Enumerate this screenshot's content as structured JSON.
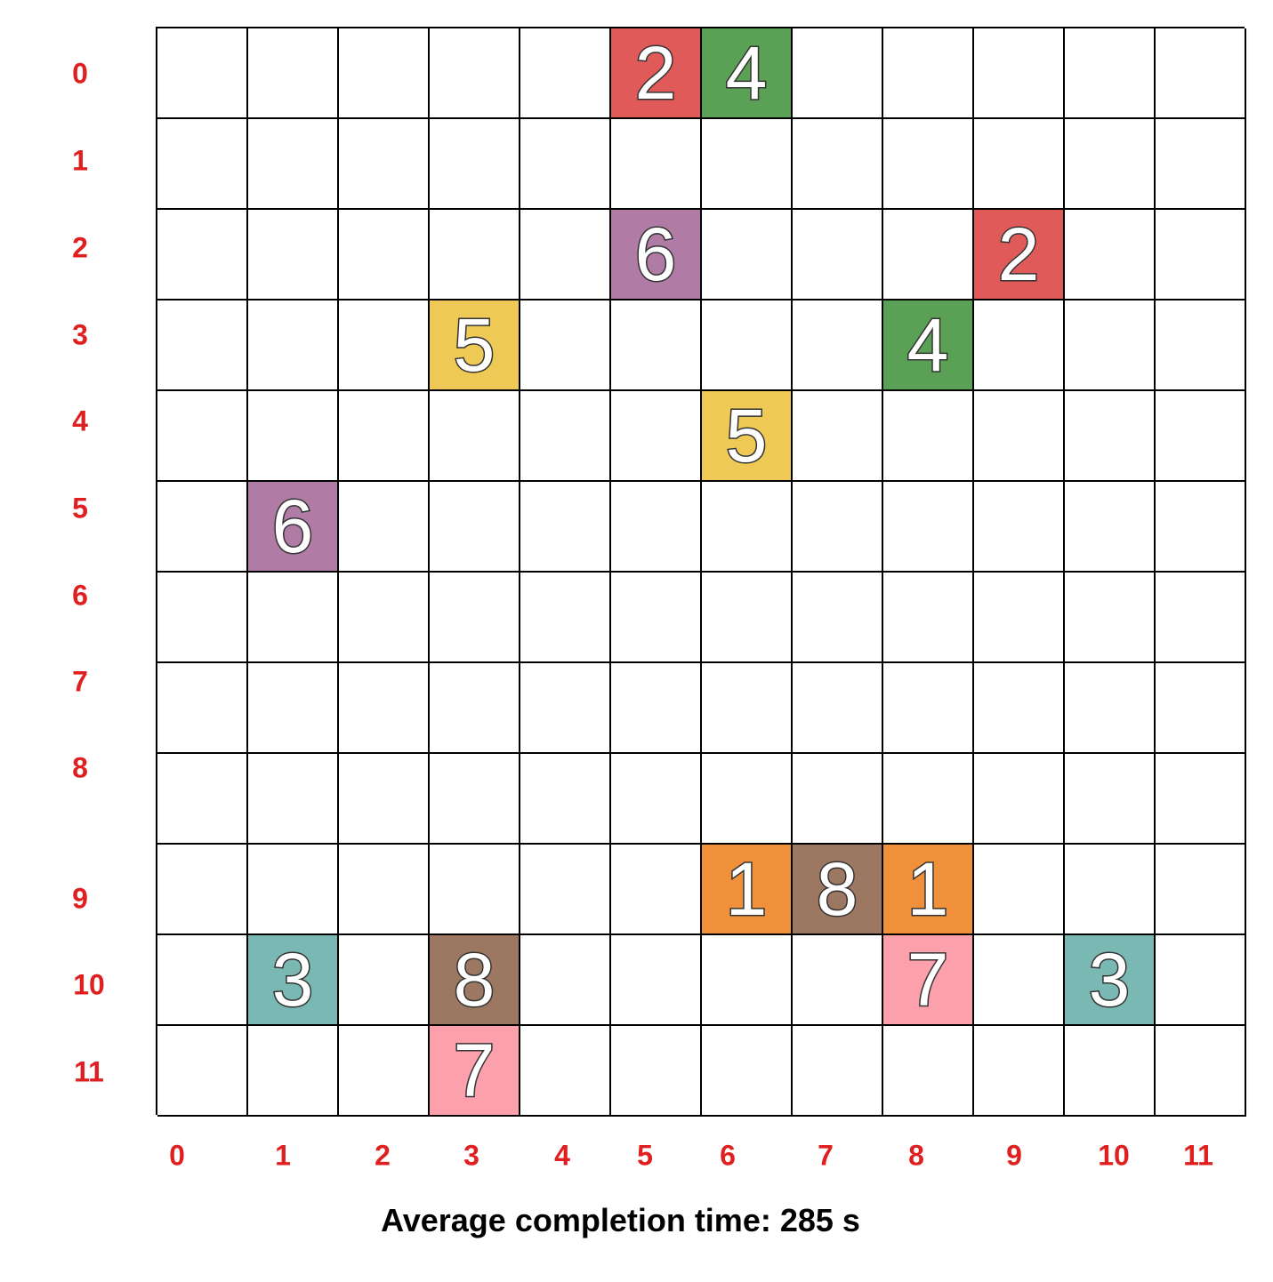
{
  "grid": {
    "rows": 12,
    "cols": 12,
    "row_labels": [
      "0",
      "1",
      "2",
      "3",
      "4",
      "5",
      "6",
      "7",
      "8",
      "9",
      "10",
      "11"
    ],
    "col_labels": [
      "0",
      "1",
      "2",
      "3",
      "4",
      "5",
      "6",
      "7",
      "8",
      "9",
      "10",
      "11"
    ],
    "tiles": [
      {
        "row": 0,
        "col": 5,
        "value": "2",
        "color": "#e05a5a"
      },
      {
        "row": 0,
        "col": 6,
        "value": "4",
        "color": "#5aa055"
      },
      {
        "row": 2,
        "col": 5,
        "value": "6",
        "color": "#b07ba5"
      },
      {
        "row": 2,
        "col": 9,
        "value": "2",
        "color": "#e05a5a"
      },
      {
        "row": 3,
        "col": 3,
        "value": "5",
        "color": "#eec955"
      },
      {
        "row": 3,
        "col": 8,
        "value": "4",
        "color": "#5aa055"
      },
      {
        "row": 4,
        "col": 6,
        "value": "5",
        "color": "#eec955"
      },
      {
        "row": 5,
        "col": 1,
        "value": "6",
        "color": "#b07ba5"
      },
      {
        "row": 9,
        "col": 6,
        "value": "1",
        "color": "#f0903b"
      },
      {
        "row": 9,
        "col": 7,
        "value": "8",
        "color": "#9c7761"
      },
      {
        "row": 9,
        "col": 8,
        "value": "1",
        "color": "#f0903b"
      },
      {
        "row": 10,
        "col": 1,
        "value": "3",
        "color": "#7ab8b3"
      },
      {
        "row": 10,
        "col": 3,
        "value": "8",
        "color": "#9c7761"
      },
      {
        "row": 10,
        "col": 8,
        "value": "7",
        "color": "#fca0ab"
      },
      {
        "row": 10,
        "col": 10,
        "value": "3",
        "color": "#7ab8b3"
      },
      {
        "row": 11,
        "col": 3,
        "value": "7",
        "color": "#fca0ab"
      }
    ]
  },
  "label_color": "#e02020",
  "footer": {
    "text": "Average completion time: 285 s"
  }
}
